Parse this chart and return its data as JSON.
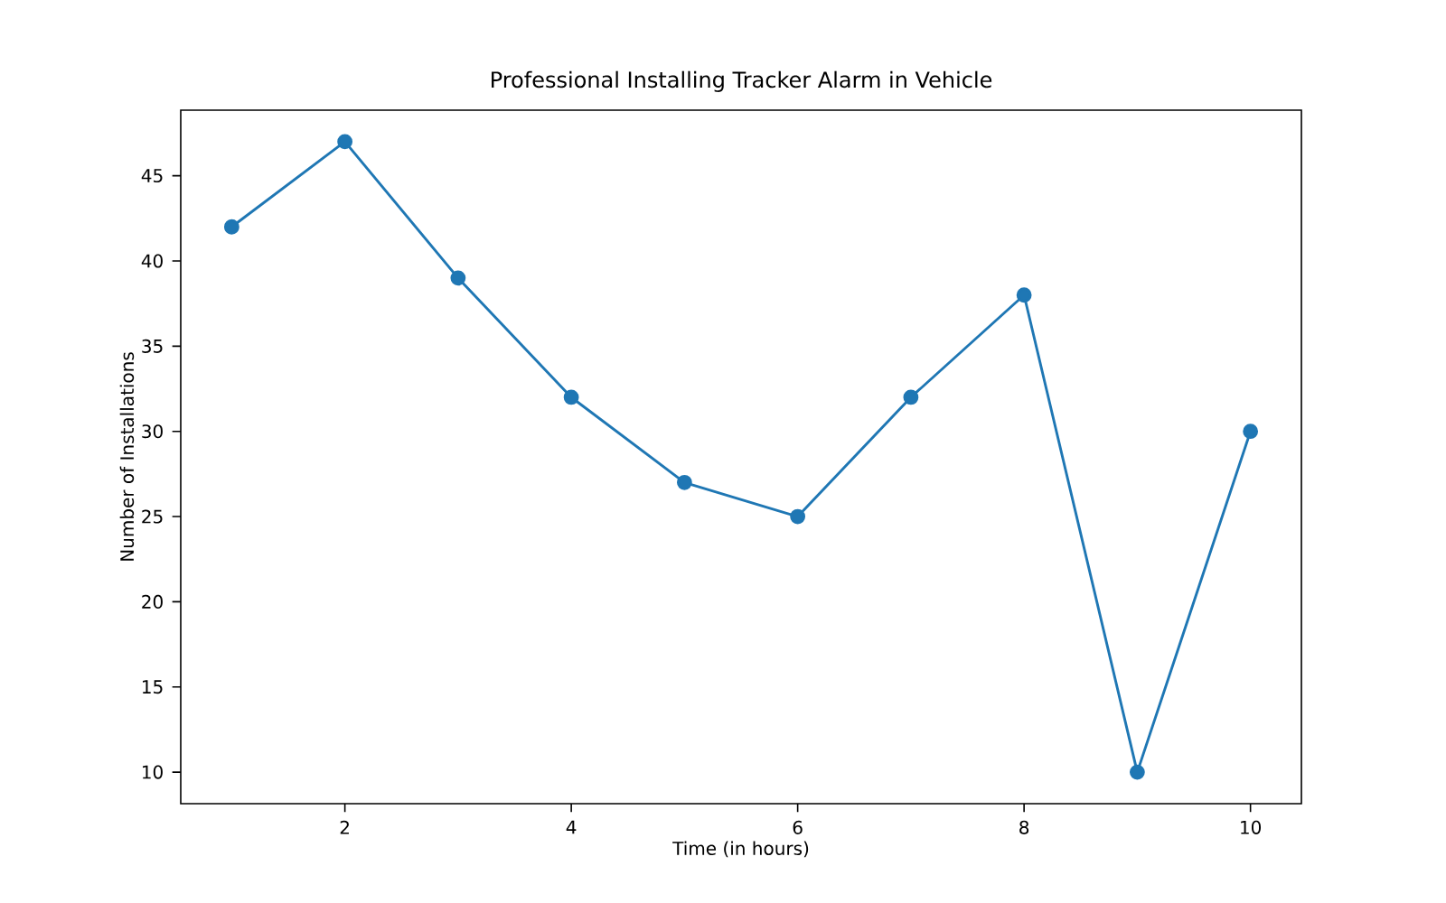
{
  "chart_data": {
    "type": "line",
    "title": "Professional Installing Tracker Alarm in Vehicle",
    "xlabel": "Time (in hours)",
    "ylabel": "Number of Installations",
    "x": [
      1,
      2,
      3,
      4,
      5,
      6,
      7,
      8,
      9,
      10
    ],
    "series": [
      {
        "color": "#1f77b4",
        "values": [
          42,
          47,
          39,
          32,
          27,
          25,
          32,
          38,
          10,
          30
        ]
      }
    ],
    "marker": "circle",
    "line_style": "solid",
    "xlim": [
      0.55,
      10.45
    ],
    "ylim": [
      8.15,
      48.85
    ],
    "xticks": [
      2,
      4,
      6,
      8,
      10
    ],
    "yticks": [
      10,
      15,
      20,
      25,
      30,
      35,
      40,
      45
    ]
  }
}
